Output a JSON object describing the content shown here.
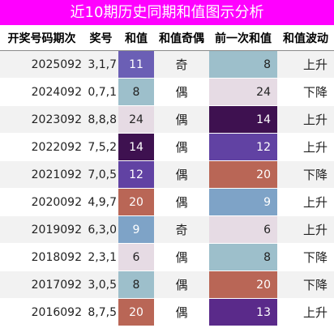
{
  "title": "近10期历史同期和值图示分析",
  "colors": {
    "title_bg": "#ff00ff"
  },
  "headers": [
    "开奖号码期次",
    "奖号",
    "和值",
    "和值奇偶",
    "前一次和值",
    "和值波动"
  ],
  "rows": [
    {
      "issue": "2025092",
      "nums": "3,1,7",
      "sum": "11",
      "parity": "奇",
      "prev": "8",
      "trend": "上升",
      "sum_bg": "#6b5fb5",
      "sum_fg": "#ffffff",
      "prev_bg": "#9dbfcb",
      "prev_fg": "#222222"
    },
    {
      "issue": "2024092",
      "nums": "0,7,1",
      "sum": "8",
      "parity": "偶",
      "prev": "24",
      "trend": "下降",
      "sum_bg": "#9dbfcb",
      "sum_fg": "#222222",
      "prev_bg": "#e6dbe4",
      "prev_fg": "#222222"
    },
    {
      "issue": "2023092",
      "nums": "8,8,8",
      "sum": "24",
      "parity": "偶",
      "prev": "14",
      "trend": "上升",
      "sum_bg": "#e6dbe4",
      "sum_fg": "#222222",
      "prev_bg": "#3e1150",
      "prev_fg": "#ffffff"
    },
    {
      "issue": "2022092",
      "nums": "7,5,2",
      "sum": "14",
      "parity": "偶",
      "prev": "12",
      "trend": "上升",
      "sum_bg": "#3e1150",
      "sum_fg": "#ffffff",
      "prev_bg": "#6142a3",
      "prev_fg": "#ffffff"
    },
    {
      "issue": "2021092",
      "nums": "7,0,5",
      "sum": "12",
      "parity": "偶",
      "prev": "20",
      "trend": "下降",
      "sum_bg": "#6142a3",
      "sum_fg": "#ffffff",
      "prev_bg": "#b96656",
      "prev_fg": "#ffffff"
    },
    {
      "issue": "2020092",
      "nums": "4,9,7",
      "sum": "20",
      "parity": "偶",
      "prev": "9",
      "trend": "上升",
      "sum_bg": "#b96656",
      "sum_fg": "#ffffff",
      "prev_bg": "#7ea3c7",
      "prev_fg": "#ffffff"
    },
    {
      "issue": "2019092",
      "nums": "6,3,0",
      "sum": "9",
      "parity": "奇",
      "prev": "6",
      "trend": "上升",
      "sum_bg": "#7ea3c7",
      "sum_fg": "#ffffff",
      "prev_bg": "#e6dbe4",
      "prev_fg": "#222222"
    },
    {
      "issue": "2018092",
      "nums": "2,3,1",
      "sum": "6",
      "parity": "偶",
      "prev": "8",
      "trend": "下降",
      "sum_bg": "#e6dbe4",
      "sum_fg": "#222222",
      "prev_bg": "#9dbfcb",
      "prev_fg": "#222222"
    },
    {
      "issue": "2017092",
      "nums": "3,0,5",
      "sum": "8",
      "parity": "偶",
      "prev": "20",
      "trend": "下降",
      "sum_bg": "#9dbfcb",
      "sum_fg": "#222222",
      "prev_bg": "#b96656",
      "prev_fg": "#ffffff"
    },
    {
      "issue": "2016092",
      "nums": "8,7,5",
      "sum": "20",
      "parity": "偶",
      "prev": "13",
      "trend": "上升",
      "sum_bg": "#b96656",
      "sum_fg": "#ffffff",
      "prev_bg": "#5a2a8a",
      "prev_fg": "#ffffff"
    }
  ]
}
